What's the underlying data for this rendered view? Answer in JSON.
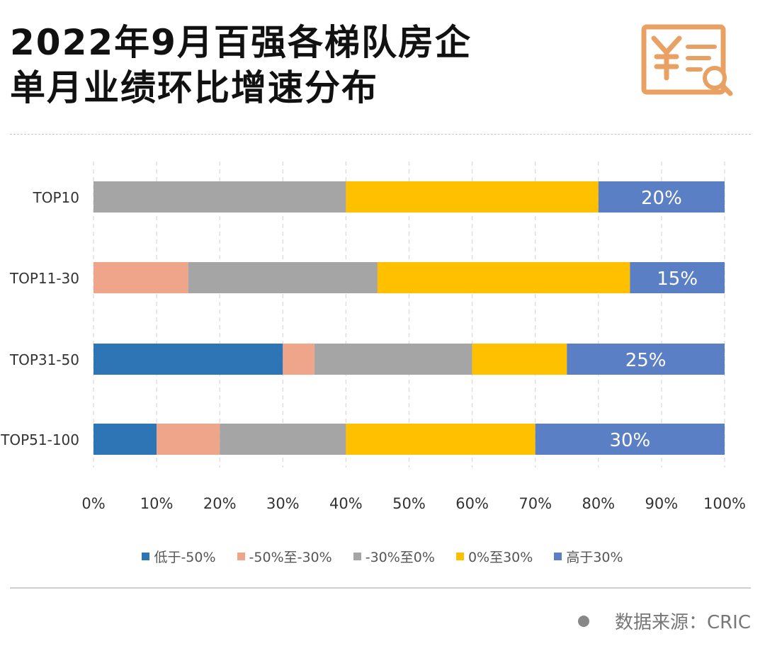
{
  "title_line1": "2022年9月百强各梯队房企",
  "title_line2": "单月业绩环比增速分布",
  "logo_icon": "yuan-document-search-icon",
  "source_label": "数据来源：CRIC",
  "colors": {
    "low": "#2E75B6",
    "mid_low": "#EFA58A",
    "mid": "#A5A5A5",
    "mid_high": "#FFC000",
    "high": "#5B7FC5",
    "accent_logo": "#E8A163"
  },
  "chart_data": {
    "type": "bar",
    "orientation": "horizontal",
    "stacked": "percent",
    "categories": [
      "TOP10",
      "TOP11-30",
      "TOP31-50",
      "TOP51-100"
    ],
    "series": [
      {
        "name": "低于-50%",
        "values": [
          0,
          0,
          30,
          10
        ]
      },
      {
        "name": "-50%至-30%",
        "values": [
          0,
          15,
          5,
          10
        ]
      },
      {
        "name": "-30%至0%",
        "values": [
          40,
          30,
          25,
          20
        ]
      },
      {
        "name": "0%至30%",
        "values": [
          40,
          40,
          15,
          30
        ]
      },
      {
        "name": "高于30%",
        "values": [
          20,
          15,
          25,
          30
        ]
      }
    ],
    "data_labels": [
      "20%",
      "15%",
      "25%",
      "30%"
    ],
    "xlim": [
      0,
      100
    ],
    "x_ticks": [
      "0%",
      "10%",
      "20%",
      "30%",
      "40%",
      "50%",
      "60%",
      "70%",
      "80%",
      "90%",
      "100%"
    ],
    "grid": "vertical dashed",
    "legend_position": "bottom"
  }
}
